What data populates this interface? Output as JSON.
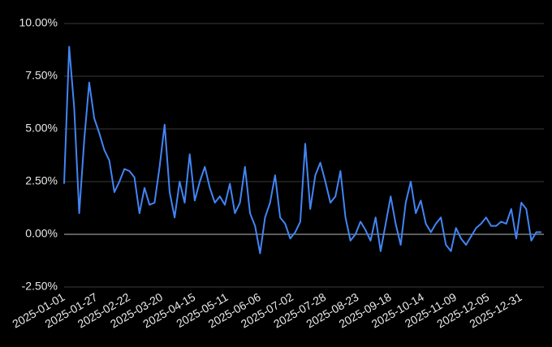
{
  "chart_data": {
    "type": "line",
    "x": [
      "2025-01-01",
      "2025-01-05",
      "2025-01-09",
      "2025-01-13",
      "2025-01-17",
      "2025-01-21",
      "2025-01-25",
      "2025-01-29",
      "2025-02-02",
      "2025-02-06",
      "2025-02-10",
      "2025-02-14",
      "2025-02-18",
      "2025-02-22",
      "2025-02-26",
      "2025-03-02",
      "2025-03-06",
      "2025-03-10",
      "2025-03-14",
      "2025-03-18",
      "2025-03-22",
      "2025-03-26",
      "2025-03-30",
      "2025-04-03",
      "2025-04-07",
      "2025-04-11",
      "2025-04-15",
      "2025-04-19",
      "2025-04-23",
      "2025-04-27",
      "2025-05-01",
      "2025-05-05",
      "2025-05-09",
      "2025-05-13",
      "2025-05-17",
      "2025-05-21",
      "2025-05-25",
      "2025-05-29",
      "2025-06-02",
      "2025-06-06",
      "2025-06-10",
      "2025-06-14",
      "2025-06-18",
      "2025-06-22",
      "2025-06-26",
      "2025-06-30",
      "2025-07-04",
      "2025-07-08",
      "2025-07-12",
      "2025-07-16",
      "2025-07-20",
      "2025-07-24",
      "2025-07-28",
      "2025-08-01",
      "2025-08-05",
      "2025-08-09",
      "2025-08-13",
      "2025-08-17",
      "2025-08-21",
      "2025-08-25",
      "2025-08-29",
      "2025-09-02",
      "2025-09-06",
      "2025-09-10",
      "2025-09-14",
      "2025-09-18",
      "2025-09-22",
      "2025-09-26",
      "2025-09-30",
      "2025-10-04",
      "2025-10-08",
      "2025-10-12",
      "2025-10-16",
      "2025-10-20",
      "2025-10-24",
      "2025-10-28",
      "2025-11-01",
      "2025-11-05",
      "2025-11-09",
      "2025-11-13",
      "2025-11-17",
      "2025-11-21",
      "2025-11-25",
      "2025-11-29",
      "2025-12-03",
      "2025-12-07",
      "2025-12-11",
      "2025-12-15",
      "2025-12-19",
      "2025-12-23",
      "2025-12-27",
      "2025-12-31",
      "2026-01-04",
      "2026-01-08",
      "2026-01-12",
      "2026-01-16"
    ],
    "series": [
      {
        "color": "#4285f4",
        "values": [
          2.4,
          8.9,
          6.0,
          1.0,
          4.5,
          7.2,
          5.5,
          4.8,
          4.0,
          3.5,
          2.0,
          2.5,
          3.1,
          3.0,
          2.7,
          1.0,
          2.2,
          1.4,
          1.5,
          3.2,
          5.2,
          2.0,
          0.8,
          2.5,
          1.5,
          3.8,
          1.6,
          2.5,
          3.2,
          2.2,
          1.5,
          1.8,
          1.4,
          2.4,
          1.0,
          1.5,
          3.2,
          1.0,
          0.4,
          -0.9,
          0.8,
          1.5,
          2.8,
          0.8,
          0.5,
          -0.2,
          0.1,
          0.6,
          4.3,
          1.2,
          2.8,
          3.4,
          2.5,
          1.5,
          1.8,
          3.0,
          0.8,
          -0.3,
          0.0,
          0.6,
          0.2,
          -0.3,
          0.8,
          -0.8,
          0.5,
          1.8,
          0.5,
          -0.5,
          1.5,
          2.5,
          1.0,
          1.6,
          0.5,
          0.1,
          0.5,
          0.8,
          -0.5,
          -0.8,
          0.3,
          -0.2,
          -0.5,
          -0.1,
          0.3,
          0.5,
          0.8,
          0.4,
          0.4,
          0.6,
          0.5,
          1.2,
          -0.2,
          1.5,
          1.2,
          -0.3,
          0.1,
          0.1
        ]
      }
    ],
    "xlim": [
      "2025-01-01",
      "2026-01-18"
    ],
    "xticks": [
      "2025-01-01",
      "2025-01-27",
      "2025-02-22",
      "2025-03-20",
      "2025-04-15",
      "2025-05-11",
      "2025-06-06",
      "2025-07-02",
      "2025-07-28",
      "2025-08-23",
      "2025-09-18",
      "2025-10-14",
      "2025-11-09",
      "2025-12-05",
      "2025-12-31"
    ],
    "ylim": [
      -2.5,
      10
    ],
    "yticks": [
      {
        "value": -2.5,
        "label": "-2.50%"
      },
      {
        "value": 0,
        "label": "0.00%"
      },
      {
        "value": 2.5,
        "label": "2.50%"
      },
      {
        "value": 5,
        "label": "5.00%"
      },
      {
        "value": 7.5,
        "label": "7.50%"
      },
      {
        "value": 10,
        "label": "10.00%"
      }
    ],
    "grid": true
  }
}
